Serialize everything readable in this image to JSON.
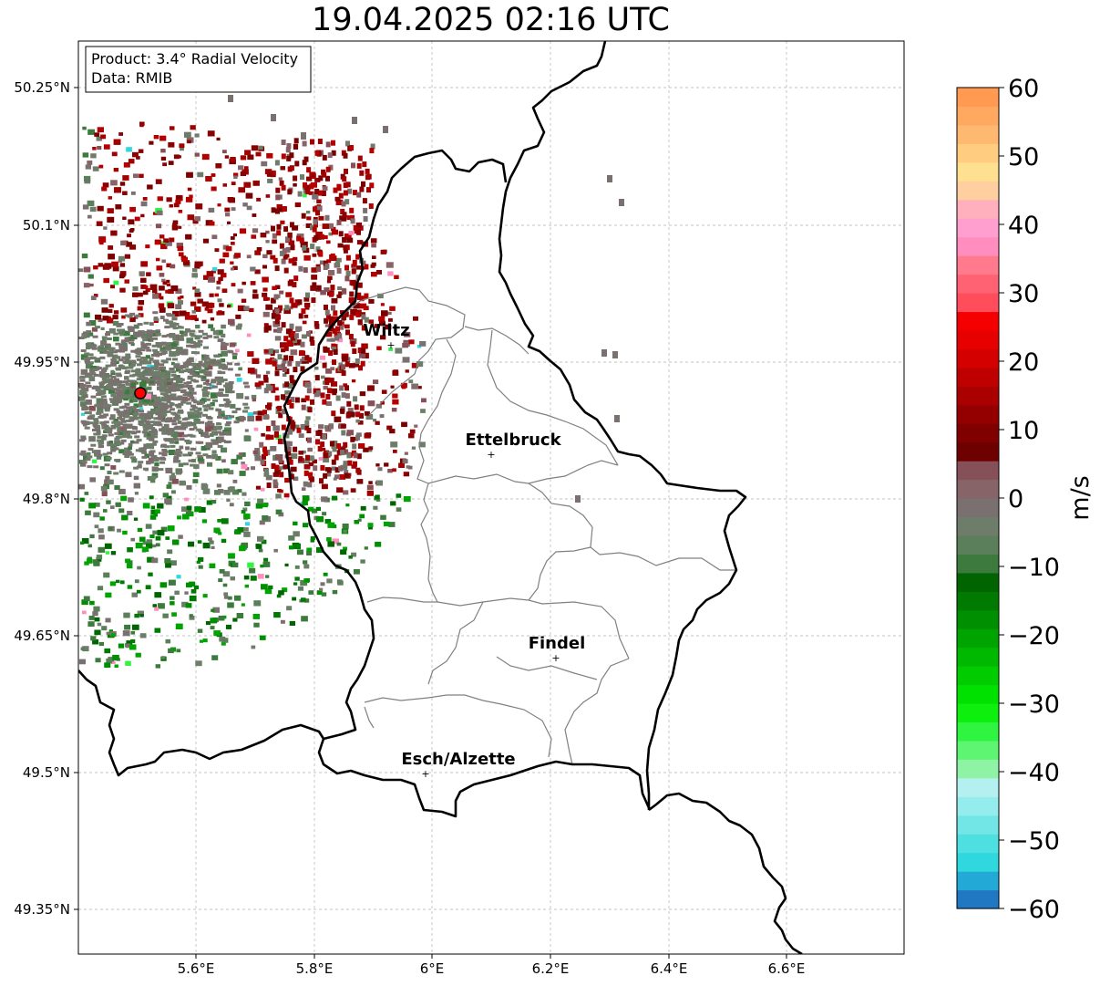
{
  "title": "19.04.2025 02:16 UTC",
  "info_box": {
    "product": "Product: 3.4° Radial Velocity",
    "data": "Data: RMIB"
  },
  "colorbar": {
    "unit_label": "m/s",
    "ticks": [
      "60",
      "50",
      "40",
      "30",
      "20",
      "10",
      "0",
      "−10",
      "−20",
      "−30",
      "−40",
      "−50",
      "−60"
    ],
    "range": [
      -60,
      60
    ],
    "colors": [
      "#1f78c1",
      "#22a9d6",
      "#2fd7df",
      "#4ee0e0",
      "#72e6e6",
      "#95ecec",
      "#b4f0f0",
      "#8ff3a6",
      "#5ef572",
      "#2ff540",
      "#0df00d",
      "#00e100",
      "#00cc00",
      "#00b800",
      "#00a400",
      "#008f00",
      "#007a00",
      "#006400",
      "#3d7a3d",
      "#5a7f5a",
      "#6e7d6a",
      "#7a7070",
      "#866468",
      "#855058",
      "#6e0000",
      "#800000",
      "#940000",
      "#aa0000",
      "#bf0000",
      "#d40000",
      "#e60000",
      "#f50000",
      "#ff4d5c",
      "#ff6373",
      "#ff7a8c",
      "#ff8ebf",
      "#ff9fd0",
      "#ffb0bc",
      "#ffcfa0",
      "#ffe090",
      "#ffcc80",
      "#ffb870",
      "#ffa860",
      "#ff9a50"
    ]
  },
  "map": {
    "lon_ticks": [
      "5.6°E",
      "5.8°E",
      "6°E",
      "6.2°E",
      "6.4°E",
      "6.6°E"
    ],
    "lat_ticks": [
      "50.25°N",
      "50.1°N",
      "49.95°N",
      "49.8°N",
      "49.65°N",
      "49.5°N",
      "49.35°N"
    ],
    "extent": {
      "lon": [
        5.4,
        6.8
      ],
      "lat": [
        49.3,
        50.3
      ]
    },
    "radar_site": {
      "lon": 5.505,
      "lat": 49.915
    },
    "cities": [
      {
        "name": "Wiltz",
        "lon": 5.93,
        "lat": 49.97
      },
      {
        "name": "Ettelbruck",
        "lon": 6.1,
        "lat": 49.85
      },
      {
        "name": "Findel",
        "lon": 6.21,
        "lat": 49.627
      },
      {
        "name": "Esch/Alzette",
        "lon": 5.99,
        "lat": 49.5
      }
    ]
  }
}
